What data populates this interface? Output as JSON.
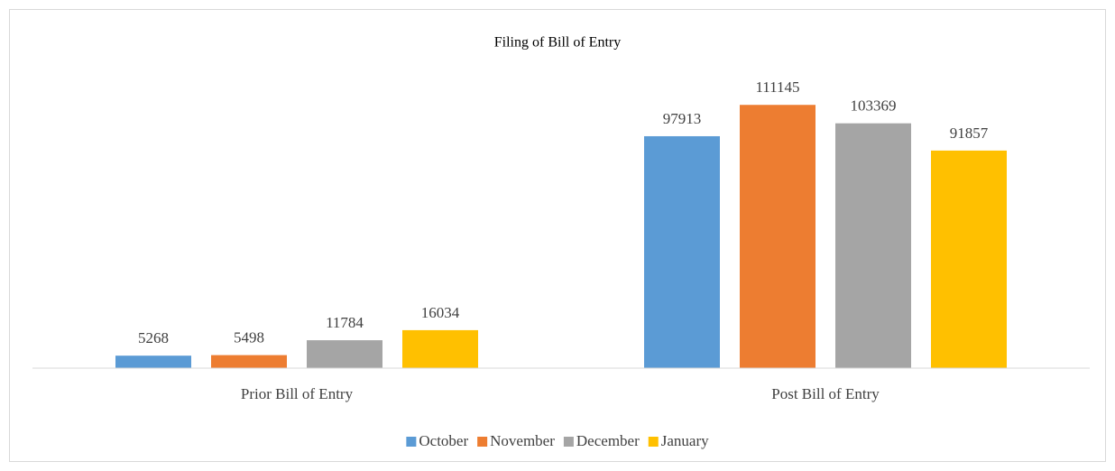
{
  "chart_data": {
    "type": "bar",
    "title": "Filing of Bill of Entry",
    "categories": [
      "Prior Bill of Entry",
      "Post Bill of Entry"
    ],
    "series": [
      {
        "name": "October",
        "color": "#5b9bd5",
        "values": [
          5268,
          97913
        ]
      },
      {
        "name": "November",
        "color": "#ed7d31",
        "values": [
          5498,
          111145
        ]
      },
      {
        "name": "December",
        "color": "#a5a5a5",
        "values": [
          11784,
          103369
        ]
      },
      {
        "name": "January",
        "color": "#ffc000",
        "values": [
          16034,
          91857
        ]
      }
    ],
    "ylim": [
      0,
      120000
    ],
    "legend": "bottom"
  }
}
